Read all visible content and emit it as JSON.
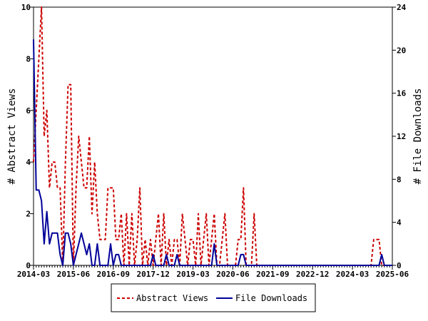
{
  "chart_data": {
    "type": "line",
    "title": "",
    "xlabel": "",
    "x_ticks": [
      "2014-03",
      "2015-06",
      "2016-09",
      "2017-12",
      "2019-03",
      "2020-06",
      "2021-09",
      "2022-12",
      "2024-03",
      "2025-06"
    ],
    "x_range": [
      "2014-03",
      "2025-06"
    ],
    "grid": false,
    "legend": "bottom-center",
    "y_left": {
      "label": "# Abstract Views",
      "ylim": [
        0,
        10
      ],
      "ticks": [
        0,
        2,
        4,
        6,
        8,
        10
      ]
    },
    "y_right": {
      "label": "# File Downloads",
      "ylim": [
        0,
        24
      ],
      "ticks": [
        0,
        4,
        8,
        12,
        16,
        20,
        24
      ]
    },
    "series": [
      {
        "name": "Abstract Views",
        "axis": "left",
        "color": "#cc0000",
        "dash": "dashed",
        "points": [
          [
            "2014-03",
            4
          ],
          [
            "2014-04",
            6
          ],
          [
            "2014-05",
            8
          ],
          [
            "2014-06",
            10
          ],
          [
            "2014-07",
            5
          ],
          [
            "2014-08",
            6
          ],
          [
            "2014-09",
            3
          ],
          [
            "2014-10",
            4
          ],
          [
            "2014-11",
            4
          ],
          [
            "2014-12",
            3
          ],
          [
            "2015-01",
            3
          ],
          [
            "2015-02",
            0
          ],
          [
            "2015-03",
            4
          ],
          [
            "2015-04",
            7
          ],
          [
            "2015-05",
            7
          ],
          [
            "2015-06",
            0
          ],
          [
            "2015-07",
            3
          ],
          [
            "2015-08",
            5
          ],
          [
            "2015-09",
            4
          ],
          [
            "2015-10",
            3
          ],
          [
            "2015-11",
            3
          ],
          [
            "2015-12",
            5
          ],
          [
            "2016-01",
            2
          ],
          [
            "2016-02",
            4
          ],
          [
            "2016-03",
            2
          ],
          [
            "2016-04",
            1
          ],
          [
            "2016-05",
            1
          ],
          [
            "2016-06",
            1
          ],
          [
            "2016-07",
            3
          ],
          [
            "2016-08",
            3
          ],
          [
            "2016-09",
            3
          ],
          [
            "2016-10",
            1
          ],
          [
            "2016-11",
            1
          ],
          [
            "2016-12",
            2
          ],
          [
            "2017-01",
            0
          ],
          [
            "2017-02",
            2
          ],
          [
            "2017-03",
            0
          ],
          [
            "2017-04",
            2
          ],
          [
            "2017-05",
            0
          ],
          [
            "2017-06",
            1
          ],
          [
            "2017-07",
            3
          ],
          [
            "2017-08",
            0
          ],
          [
            "2017-09",
            1
          ],
          [
            "2017-10",
            0
          ],
          [
            "2017-11",
            1
          ],
          [
            "2017-12",
            0
          ],
          [
            "2018-01",
            1
          ],
          [
            "2018-02",
            2
          ],
          [
            "2018-03",
            0
          ],
          [
            "2018-04",
            2
          ],
          [
            "2018-05",
            0
          ],
          [
            "2018-06",
            1
          ],
          [
            "2018-07",
            0
          ],
          [
            "2018-08",
            1
          ],
          [
            "2018-09",
            1
          ],
          [
            "2018-10",
            0
          ],
          [
            "2018-11",
            2
          ],
          [
            "2018-12",
            1
          ],
          [
            "2019-01",
            0
          ],
          [
            "2019-02",
            1
          ],
          [
            "2019-03",
            1
          ],
          [
            "2019-04",
            0
          ],
          [
            "2019-05",
            2
          ],
          [
            "2019-06",
            0
          ],
          [
            "2019-07",
            1
          ],
          [
            "2019-08",
            2
          ],
          [
            "2019-09",
            0
          ],
          [
            "2019-10",
            1
          ],
          [
            "2019-11",
            2
          ],
          [
            "2019-12",
            0
          ],
          [
            "2020-01",
            0
          ],
          [
            "2020-02",
            1
          ],
          [
            "2020-03",
            2
          ],
          [
            "2020-04",
            0
          ],
          [
            "2020-05",
            0
          ],
          [
            "2020-06",
            0
          ],
          [
            "2020-07",
            0
          ],
          [
            "2020-08",
            1
          ],
          [
            "2020-09",
            1
          ],
          [
            "2020-10",
            3
          ],
          [
            "2020-11",
            0
          ],
          [
            "2020-12",
            0
          ],
          [
            "2021-01",
            0
          ],
          [
            "2021-02",
            2
          ],
          [
            "2021-03",
            0
          ],
          [
            "2021-04",
            0
          ],
          [
            "2021-05",
            0
          ],
          [
            "2021-06",
            0
          ],
          [
            "2021-09",
            0
          ],
          [
            "2022-12",
            0
          ],
          [
            "2024-03",
            0
          ],
          [
            "2024-10",
            0
          ],
          [
            "2024-11",
            1
          ],
          [
            "2024-12",
            1
          ],
          [
            "2025-01",
            1
          ],
          [
            "2025-02",
            0
          ],
          [
            "2025-03",
            0
          ],
          [
            "2025-04",
            0
          ],
          [
            "2025-05",
            0
          ],
          [
            "2025-06",
            0
          ]
        ]
      },
      {
        "name": "File Downloads",
        "axis": "right",
        "color": "#000099",
        "dash": "solid",
        "points": [
          [
            "2014-03",
            21
          ],
          [
            "2014-04",
            7
          ],
          [
            "2014-05",
            7
          ],
          [
            "2014-06",
            6
          ],
          [
            "2014-07",
            2
          ],
          [
            "2014-08",
            5
          ],
          [
            "2014-09",
            2
          ],
          [
            "2014-10",
            3
          ],
          [
            "2014-11",
            3
          ],
          [
            "2014-12",
            3
          ],
          [
            "2015-01",
            1
          ],
          [
            "2015-02",
            0
          ],
          [
            "2015-03",
            3
          ],
          [
            "2015-04",
            3
          ],
          [
            "2015-05",
            2
          ],
          [
            "2015-06",
            0
          ],
          [
            "2015-07",
            1
          ],
          [
            "2015-08",
            2
          ],
          [
            "2015-09",
            3
          ],
          [
            "2015-10",
            2
          ],
          [
            "2015-11",
            1
          ],
          [
            "2015-12",
            2
          ],
          [
            "2016-01",
            0
          ],
          [
            "2016-02",
            0
          ],
          [
            "2016-03",
            2
          ],
          [
            "2016-04",
            0
          ],
          [
            "2016-05",
            0
          ],
          [
            "2016-06",
            0
          ],
          [
            "2016-07",
            0
          ],
          [
            "2016-08",
            2
          ],
          [
            "2016-09",
            0
          ],
          [
            "2016-10",
            1
          ],
          [
            "2016-11",
            1
          ],
          [
            "2016-12",
            0
          ],
          [
            "2017-01",
            0
          ],
          [
            "2017-02",
            0
          ],
          [
            "2017-03",
            0
          ],
          [
            "2017-04",
            0
          ],
          [
            "2017-05",
            0
          ],
          [
            "2017-06",
            0
          ],
          [
            "2017-07",
            0
          ],
          [
            "2017-08",
            0
          ],
          [
            "2017-09",
            0
          ],
          [
            "2017-10",
            0
          ],
          [
            "2017-11",
            0
          ],
          [
            "2017-12",
            1
          ],
          [
            "2018-01",
            0
          ],
          [
            "2018-02",
            0
          ],
          [
            "2018-03",
            0
          ],
          [
            "2018-04",
            0
          ],
          [
            "2018-05",
            1
          ],
          [
            "2018-06",
            0
          ],
          [
            "2018-07",
            0
          ],
          [
            "2018-08",
            0
          ],
          [
            "2018-09",
            1
          ],
          [
            "2018-10",
            0
          ],
          [
            "2018-11",
            0
          ],
          [
            "2018-12",
            0
          ],
          [
            "2019-01",
            0
          ],
          [
            "2019-02",
            0
          ],
          [
            "2019-03",
            0
          ],
          [
            "2019-04",
            0
          ],
          [
            "2019-05",
            0
          ],
          [
            "2019-06",
            0
          ],
          [
            "2019-07",
            0
          ],
          [
            "2019-08",
            0
          ],
          [
            "2019-09",
            0
          ],
          [
            "2019-10",
            0
          ],
          [
            "2019-11",
            2
          ],
          [
            "2019-12",
            0
          ],
          [
            "2020-01",
            0
          ],
          [
            "2020-02",
            0
          ],
          [
            "2020-03",
            0
          ],
          [
            "2020-04",
            0
          ],
          [
            "2020-05",
            0
          ],
          [
            "2020-06",
            0
          ],
          [
            "2020-07",
            0
          ],
          [
            "2020-08",
            0
          ],
          [
            "2020-09",
            1
          ],
          [
            "2020-10",
            1
          ],
          [
            "2020-11",
            0
          ],
          [
            "2020-12",
            0
          ],
          [
            "2021-01",
            0
          ],
          [
            "2021-02",
            0
          ],
          [
            "2021-03",
            0
          ],
          [
            "2021-06",
            0
          ],
          [
            "2021-09",
            0
          ],
          [
            "2022-12",
            0
          ],
          [
            "2024-03",
            0
          ],
          [
            "2024-12",
            0
          ],
          [
            "2025-01",
            0
          ],
          [
            "2025-02",
            1
          ],
          [
            "2025-03",
            0
          ],
          [
            "2025-04",
            0
          ],
          [
            "2025-05",
            0
          ],
          [
            "2025-06",
            0
          ]
        ]
      }
    ]
  }
}
